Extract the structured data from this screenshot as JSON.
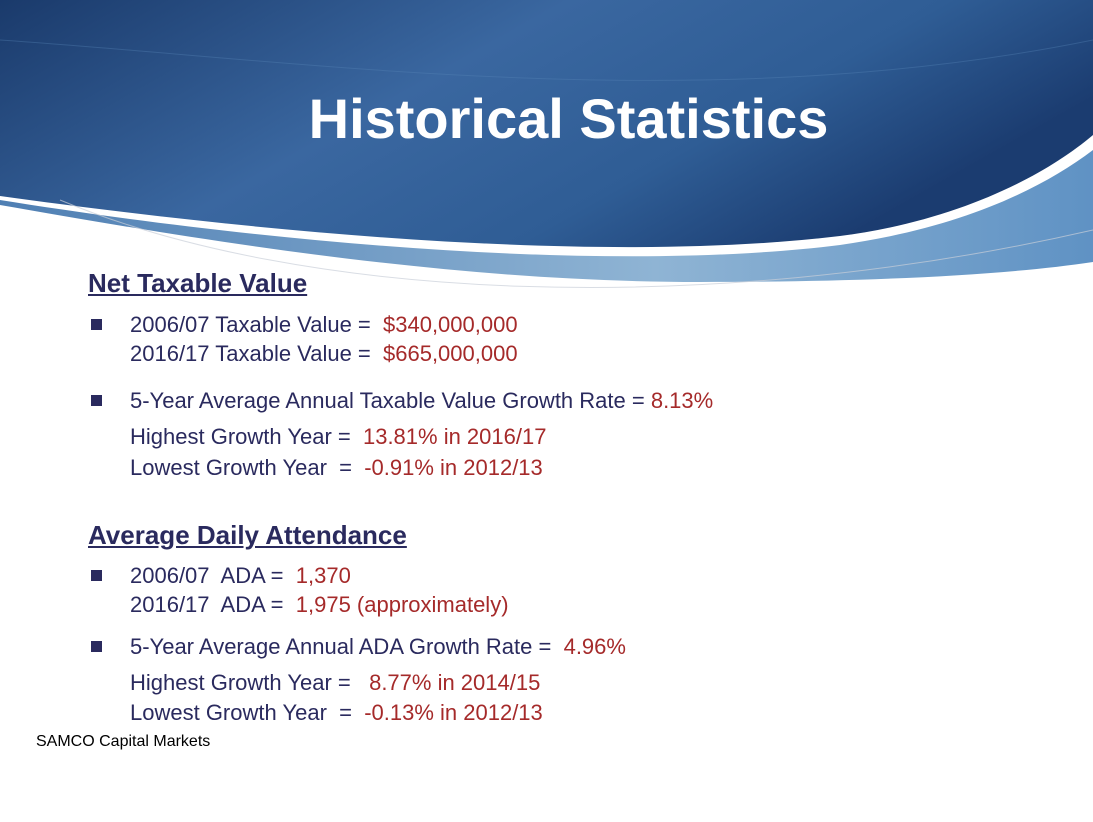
{
  "slide": {
    "title": "Historical Statistics",
    "footer": "SAMCO Capital Markets"
  },
  "ntv": {
    "heading": "Net Taxable Value",
    "line1": {
      "label": "2006/07 Taxable Value =  ",
      "value": "$340,000,000"
    },
    "line2": {
      "label": "2016/17 Taxable Value =  ",
      "value": "$665,000,000"
    },
    "growth": {
      "label": "5-Year Average Annual Taxable Value Growth Rate = ",
      "value": "8.13%"
    },
    "highest": {
      "label": "Highest Growth Year =  ",
      "value": "13.81% in 2016/17"
    },
    "lowest": {
      "label": "Lowest Growth Year  =  ",
      "value": "-0.91% in 2012/13"
    }
  },
  "ada": {
    "heading": "Average Daily Attendance",
    "line1": {
      "label": "2006/07  ADA =  ",
      "value": "1,370"
    },
    "line2": {
      "label": "2016/17  ADA =  ",
      "value": "1,975 (approximately)"
    },
    "growth": {
      "label": "5-Year Average Annual ADA Growth Rate =  ",
      "value": "4.96%"
    },
    "highest": {
      "label": "Highest Growth Year =   ",
      "value": "8.77% in 2014/15"
    },
    "lowest": {
      "label": "Lowest Growth Year  =  ",
      "value": "-0.13% in 2012/13"
    }
  },
  "colors": {
    "banner_dark": "#1d3f72",
    "banner_mid": "#3b6aa3",
    "banner_light": "#8fb4d4",
    "text": "#2a2a5e",
    "value": "#a52a2a"
  }
}
